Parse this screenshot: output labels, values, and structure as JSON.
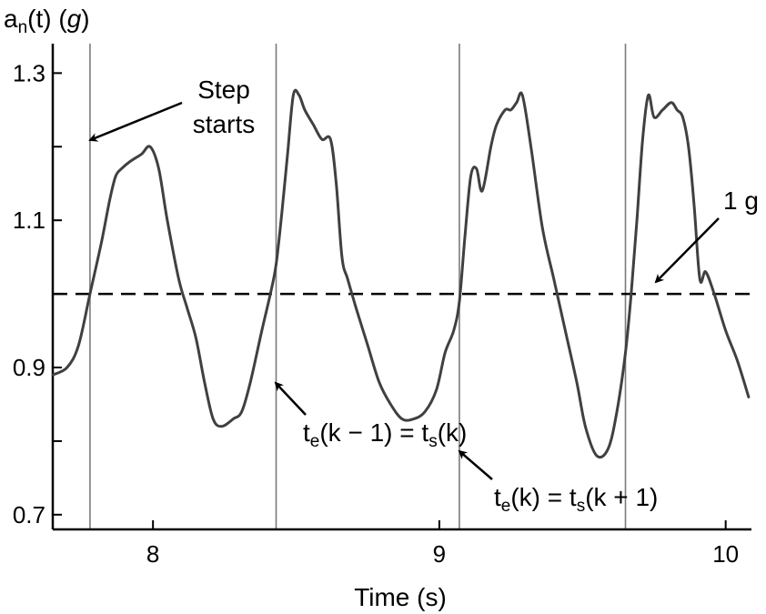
{
  "chart_data": {
    "type": "line",
    "ylabel": {
      "main": "a",
      "sub": "n",
      "rest": "(t) (",
      "unit": "g",
      "close": ")"
    },
    "xlabel": "Time (s)",
    "xlim": [
      7.65,
      10.09
    ],
    "ylim": [
      0.68,
      1.34
    ],
    "x_ticks": [
      8,
      9,
      10
    ],
    "x_tick_labels": [
      "8",
      "9",
      "10"
    ],
    "y_ticks": [
      0.7,
      0.8,
      0.9,
      1.0,
      1.1,
      1.2,
      1.3
    ],
    "y_tick_labels": [
      "0.7",
      "",
      "0.9",
      "",
      "1.1",
      "",
      "1.3"
    ],
    "reference_line": {
      "y": 1.0,
      "style": "dashed",
      "label": "1 g"
    },
    "step_boundaries": [
      7.78,
      8.43,
      9.07,
      9.65
    ],
    "annotations": {
      "step_starts": [
        "Step",
        "starts"
      ],
      "boundary_1": {
        "a": "t",
        "a_sub": "e",
        "b": "(k − 1) = t",
        "b_sub": "s",
        "c": "(k)"
      },
      "boundary_2": {
        "a": "t",
        "a_sub": "e",
        "b": "(k) = t",
        "b_sub": "s",
        "c": "(k + 1)"
      }
    },
    "series": [
      {
        "color": "#404040",
        "x": [
          7.65,
          7.7,
          7.74,
          7.78,
          7.82,
          7.85,
          7.87,
          7.89,
          7.92,
          7.96,
          7.99,
          8.02,
          8.05,
          8.09,
          8.12,
          8.15,
          8.18,
          8.21,
          8.24,
          8.28,
          8.31,
          8.34,
          8.38,
          8.41,
          8.43,
          8.45,
          8.47,
          8.49,
          8.51,
          8.53,
          8.56,
          8.59,
          8.62,
          8.64,
          8.66,
          8.68,
          8.71,
          8.75,
          8.79,
          8.83,
          8.87,
          8.91,
          8.95,
          8.99,
          9.02,
          9.05,
          9.07,
          9.09,
          9.11,
          9.13,
          9.15,
          9.18,
          9.2,
          9.23,
          9.25,
          9.27,
          9.29,
          9.32,
          9.36,
          9.4,
          9.44,
          9.48,
          9.51,
          9.55,
          9.59,
          9.62,
          9.65,
          9.67,
          9.69,
          9.71,
          9.73,
          9.75,
          9.78,
          9.81,
          9.83,
          9.85,
          9.87,
          9.89,
          9.91,
          9.93,
          9.96,
          10.0,
          10.04,
          10.08
        ],
        "y": [
          0.89,
          0.9,
          0.93,
          1.0,
          1.07,
          1.13,
          1.16,
          1.17,
          1.18,
          1.19,
          1.2,
          1.17,
          1.1,
          1.02,
          0.98,
          0.94,
          0.88,
          0.83,
          0.82,
          0.83,
          0.84,
          0.88,
          0.95,
          1.0,
          1.04,
          1.11,
          1.19,
          1.27,
          1.27,
          1.25,
          1.23,
          1.21,
          1.21,
          1.15,
          1.05,
          1.02,
          0.98,
          0.93,
          0.88,
          0.85,
          0.83,
          0.83,
          0.84,
          0.87,
          0.92,
          0.95,
          0.99,
          1.08,
          1.16,
          1.17,
          1.14,
          1.2,
          1.23,
          1.25,
          1.25,
          1.26,
          1.27,
          1.2,
          1.09,
          1.02,
          0.95,
          0.88,
          0.82,
          0.78,
          0.79,
          0.84,
          0.92,
          1.0,
          1.1,
          1.21,
          1.27,
          1.24,
          1.25,
          1.26,
          1.25,
          1.24,
          1.2,
          1.12,
          1.02,
          1.03,
          1.0,
          0.95,
          0.91,
          0.86
        ]
      }
    ]
  }
}
